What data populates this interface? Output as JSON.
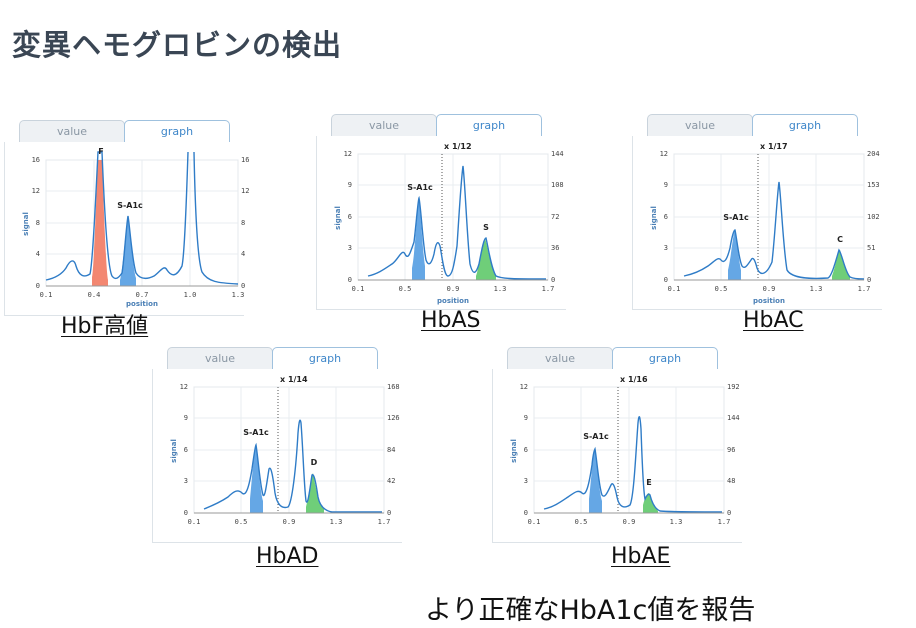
{
  "slide": {
    "title": "変異ヘモグロビンの検出",
    "footer": "より正確なHbA1c値を報告"
  },
  "tabs": {
    "value": "value",
    "graph": "graph"
  },
  "axis_labels": {
    "y": "signal",
    "x": "position"
  },
  "colors": {
    "line": "#2f7cc7",
    "s_a1c_fill": "#4a98e0",
    "f_fill": "#f27a62",
    "variant_fill": "#5fc96a",
    "title": "#3a4654"
  },
  "panels": [
    {
      "id": "hbf",
      "caption": "HbF高値",
      "scale_note": "",
      "x_ticks": [
        "0.1",
        "0.4",
        "0.7",
        "1.0",
        "1.3"
      ],
      "y_left_ticks": [
        "0",
        "4",
        "8",
        "12",
        "16"
      ],
      "y_right_ticks": [
        "0",
        "4",
        "8",
        "12",
        "16"
      ],
      "peak_labels": [
        "F",
        "S-A1c"
      ]
    },
    {
      "id": "hbas",
      "caption": "HbAS",
      "scale_note": "x 1/12",
      "x_ticks": [
        "0.1",
        "0.5",
        "0.9",
        "1.3",
        "1.7"
      ],
      "y_left_ticks": [
        "0",
        "3",
        "6",
        "9",
        "12"
      ],
      "y_right_ticks": [
        "0",
        "36",
        "72",
        "108",
        "144"
      ],
      "peak_labels": [
        "S-A1c",
        "S"
      ]
    },
    {
      "id": "hbac",
      "caption": "HbAC",
      "scale_note": "x 1/17",
      "x_ticks": [
        "0.1",
        "0.5",
        "0.9",
        "1.3",
        "1.7"
      ],
      "y_left_ticks": [
        "0",
        "3",
        "6",
        "9",
        "12"
      ],
      "y_right_ticks": [
        "0",
        "51",
        "102",
        "153",
        "204"
      ],
      "peak_labels": [
        "S-A1c",
        "C"
      ]
    },
    {
      "id": "hbad",
      "caption": "HbAD",
      "scale_note": "x 1/14",
      "x_ticks": [
        "0.1",
        "0.5",
        "0.9",
        "1.3",
        "1.7"
      ],
      "y_left_ticks": [
        "0",
        "3",
        "6",
        "9",
        "12"
      ],
      "y_right_ticks": [
        "0",
        "42",
        "84",
        "126",
        "168"
      ],
      "peak_labels": [
        "S-A1c",
        "D"
      ]
    },
    {
      "id": "hbae",
      "caption": "HbAE",
      "scale_note": "x 1/16",
      "x_ticks": [
        "0.1",
        "0.5",
        "0.9",
        "1.3",
        "1.7"
      ],
      "y_left_ticks": [
        "0",
        "3",
        "6",
        "9",
        "12"
      ],
      "y_right_ticks": [
        "0",
        "48",
        "96",
        "144",
        "192"
      ],
      "peak_labels": [
        "S-A1c",
        "E"
      ]
    }
  ]
}
